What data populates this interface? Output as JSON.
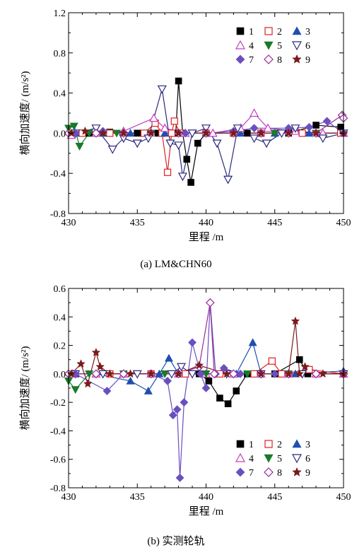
{
  "chart_data": [
    {
      "type": "line",
      "caption": "(a) LM&CHN60",
      "xlabel": "里程 /m",
      "ylabel": "横向加速度/ (m/s²)",
      "xlim": [
        430,
        450
      ],
      "ylim": [
        -0.8,
        1.2
      ],
      "xticks": [
        "430",
        "435",
        "440",
        "445",
        "450"
      ],
      "yticks": [
        "-0.8",
        "-0.4",
        "0.0",
        "0.4",
        "0.8",
        "1.2"
      ],
      "legend_position": "top-right",
      "series": [
        {
          "name": "1",
          "color": "#000000",
          "marker": "square-filled",
          "points": [
            [
              431.5,
              0.0
            ],
            [
              433.0,
              0.01
            ],
            [
              435.0,
              0.0
            ],
            [
              436.5,
              0.0
            ],
            [
              437.8,
              0.0
            ],
            [
              438.0,
              0.52
            ],
            [
              438.3,
              0.0
            ],
            [
              438.6,
              -0.26
            ],
            [
              438.9,
              -0.49
            ],
            [
              439.4,
              -0.1
            ],
            [
              440.0,
              0.0
            ],
            [
              443.0,
              0.0
            ],
            [
              446.0,
              0.0
            ],
            [
              448.0,
              0.08
            ],
            [
              449.8,
              0.06
            ]
          ]
        },
        {
          "name": "2",
          "color": "#e02020",
          "marker": "square-open",
          "points": [
            [
              431.0,
              0.0
            ],
            [
              433.0,
              0.0
            ],
            [
              435.5,
              0.0
            ],
            [
              436.3,
              0.1
            ],
            [
              436.8,
              0.0
            ],
            [
              437.2,
              -0.39
            ],
            [
              437.5,
              0.0
            ],
            [
              437.7,
              0.12
            ],
            [
              438.1,
              0.0
            ],
            [
              440.0,
              0.0
            ],
            [
              442.0,
              0.0
            ],
            [
              444.0,
              0.0
            ],
            [
              447.0,
              0.0
            ],
            [
              449.8,
              0.0
            ]
          ]
        },
        {
          "name": "3",
          "color": "#1f4fb0",
          "marker": "triangle-up-filled",
          "points": [
            [
              430.5,
              0.0
            ],
            [
              432.5,
              0.0
            ],
            [
              434.5,
              0.0
            ],
            [
              437.0,
              0.0
            ],
            [
              440.0,
              0.0
            ],
            [
              442.5,
              0.0
            ],
            [
              445.0,
              0.0
            ],
            [
              447.5,
              0.0
            ],
            [
              450.0,
              0.0
            ]
          ]
        },
        {
          "name": "4",
          "color": "#c040c0",
          "marker": "triangle-up-open",
          "points": [
            [
              430.2,
              -0.02
            ],
            [
              432.0,
              0.0
            ],
            [
              434.0,
              0.02
            ],
            [
              436.2,
              0.15
            ],
            [
              437.0,
              0.05
            ],
            [
              438.5,
              0.0
            ],
            [
              440.5,
              0.0
            ],
            [
              442.5,
              0.05
            ],
            [
              443.5,
              0.2
            ],
            [
              444.5,
              0.05
            ],
            [
              446.5,
              0.02
            ],
            [
              448.5,
              0.0
            ],
            [
              450.0,
              0.0
            ]
          ]
        },
        {
          "name": "5",
          "color": "#1a7a2a",
          "marker": "triangle-down-filled",
          "points": [
            [
              430.0,
              0.05
            ],
            [
              430.4,
              0.07
            ],
            [
              430.8,
              -0.13
            ],
            [
              431.5,
              0.0
            ],
            [
              433.5,
              0.0
            ],
            [
              436.0,
              0.0
            ],
            [
              439.0,
              0.0
            ],
            [
              442.0,
              0.0
            ],
            [
              445.0,
              0.0
            ],
            [
              448.0,
              0.0
            ],
            [
              450.0,
              0.0
            ]
          ]
        },
        {
          "name": "6",
          "color": "#2a2a80",
          "marker": "triangle-down-open",
          "points": [
            [
              430.5,
              0.0
            ],
            [
              432.0,
              0.05
            ],
            [
              433.2,
              -0.16
            ],
            [
              434.0,
              -0.05
            ],
            [
              435.0,
              -0.1
            ],
            [
              435.8,
              -0.05
            ],
            [
              436.8,
              0.44
            ],
            [
              437.4,
              -0.1
            ],
            [
              438.0,
              -0.12
            ],
            [
              438.3,
              -0.43
            ],
            [
              439.0,
              0.0
            ],
            [
              440.0,
              0.05
            ],
            [
              440.8,
              -0.1
            ],
            [
              441.6,
              -0.46
            ],
            [
              442.3,
              0.05
            ],
            [
              443.5,
              -0.05
            ],
            [
              444.4,
              -0.1
            ],
            [
              445.5,
              0.0
            ],
            [
              446.5,
              0.05
            ],
            [
              448.5,
              -0.05
            ],
            [
              450.0,
              0.0
            ]
          ]
        },
        {
          "name": "7",
          "color": "#6a4fc0",
          "marker": "diamond-filled",
          "points": [
            [
              430.5,
              0.0
            ],
            [
              432.5,
              0.02
            ],
            [
              434.0,
              0.0
            ],
            [
              436.0,
              0.0
            ],
            [
              438.5,
              0.0
            ],
            [
              440.0,
              0.0
            ],
            [
              442.0,
              0.02
            ],
            [
              443.5,
              0.05
            ],
            [
              446.0,
              0.05
            ],
            [
              447.5,
              0.06
            ],
            [
              448.8,
              0.12
            ],
            [
              450.0,
              0.0
            ]
          ]
        },
        {
          "name": "8",
          "color": "#9a2a9a",
          "marker": "diamond-open",
          "points": [
            [
              430.0,
              0.0
            ],
            [
              432.0,
              0.0
            ],
            [
              434.0,
              0.0
            ],
            [
              436.0,
              0.0
            ],
            [
              438.0,
              0.0
            ],
            [
              440.0,
              0.0
            ],
            [
              442.0,
              0.0
            ],
            [
              444.0,
              0.0
            ],
            [
              446.0,
              0.0
            ],
            [
              448.0,
              0.0
            ],
            [
              449.9,
              0.18
            ],
            [
              450.0,
              0.15
            ]
          ]
        },
        {
          "name": "9",
          "color": "#7a1a1a",
          "marker": "star",
          "points": [
            [
              430.2,
              0.0
            ],
            [
              431.2,
              0.02
            ],
            [
              432.5,
              0.0
            ],
            [
              434.0,
              0.0
            ],
            [
              436.0,
              0.0
            ],
            [
              438.0,
              0.0
            ],
            [
              440.0,
              0.0
            ],
            [
              442.0,
              0.0
            ],
            [
              444.0,
              0.0
            ],
            [
              446.0,
              0.0
            ],
            [
              448.0,
              0.0
            ],
            [
              450.0,
              0.0
            ]
          ]
        }
      ]
    },
    {
      "type": "line",
      "caption": "(b) 实测轮轨",
      "xlabel": "里程 /m",
      "ylabel": "横向加速度/ (m/s²)",
      "xlim": [
        430,
        450
      ],
      "ylim": [
        -0.8,
        0.6
      ],
      "xticks": [
        "430",
        "435",
        "440",
        "445",
        "450"
      ],
      "yticks": [
        "-0.8",
        "-0.6",
        "-0.4",
        "-0.2",
        "0.0",
        "0.2",
        "0.4",
        "0.6"
      ],
      "legend_position": "bottom-right",
      "series": [
        {
          "name": "1",
          "color": "#000000",
          "marker": "square-filled",
          "points": [
            [
              430.5,
              0.0
            ],
            [
              433.0,
              0.0
            ],
            [
              436.0,
              0.0
            ],
            [
              439.5,
              0.0
            ],
            [
              440.2,
              -0.05
            ],
            [
              441.0,
              -0.17
            ],
            [
              441.6,
              -0.21
            ],
            [
              442.2,
              -0.12
            ],
            [
              443.0,
              0.0
            ],
            [
              445.0,
              0.0
            ],
            [
              446.8,
              0.1
            ],
            [
              447.4,
              0.0
            ],
            [
              450.0,
              0.0
            ]
          ]
        },
        {
          "name": "2",
          "color": "#e02020",
          "marker": "square-open",
          "points": [
            [
              430.5,
              0.0
            ],
            [
              433.0,
              0.0
            ],
            [
              436.0,
              0.0
            ],
            [
              438.5,
              0.0
            ],
            [
              441.0,
              0.0
            ],
            [
              443.5,
              0.0
            ],
            [
              444.8,
              0.09
            ],
            [
              445.5,
              0.0
            ],
            [
              447.5,
              0.03
            ],
            [
              450.0,
              0.0
            ]
          ]
        },
        {
          "name": "3",
          "color": "#1f4fb0",
          "marker": "triangle-up-filled",
          "points": [
            [
              430.5,
              0.0
            ],
            [
              432.0,
              0.0
            ],
            [
              434.5,
              -0.05
            ],
            [
              435.8,
              -0.12
            ],
            [
              436.6,
              0.0
            ],
            [
              437.3,
              0.11
            ],
            [
              438.0,
              0.0
            ],
            [
              440.0,
              0.0
            ],
            [
              442.2,
              0.0
            ],
            [
              443.4,
              0.22
            ],
            [
              444.0,
              0.0
            ],
            [
              446.5,
              0.0
            ],
            [
              450.0,
              0.02
            ]
          ]
        },
        {
          "name": "4",
          "color": "#c040c0",
          "marker": "triangle-up-open",
          "points": [
            [
              430.3,
              0.0
            ],
            [
              432.0,
              0.0
            ],
            [
              434.0,
              0.0
            ],
            [
              436.0,
              0.0
            ],
            [
              438.0,
              0.0
            ],
            [
              440.0,
              0.0
            ],
            [
              442.0,
              0.0
            ],
            [
              444.0,
              0.0
            ],
            [
              446.0,
              0.0
            ],
            [
              448.0,
              0.0
            ],
            [
              450.0,
              0.0
            ]
          ]
        },
        {
          "name": "5",
          "color": "#1a7a2a",
          "marker": "triangle-down-filled",
          "points": [
            [
              430.0,
              -0.05
            ],
            [
              430.5,
              -0.11
            ],
            [
              431.5,
              0.0
            ],
            [
              434.0,
              0.0
            ],
            [
              437.0,
              0.0
            ],
            [
              440.0,
              0.0
            ],
            [
              443.0,
              0.0
            ],
            [
              446.0,
              0.0
            ],
            [
              450.0,
              0.0
            ]
          ]
        },
        {
          "name": "6",
          "color": "#2a2a80",
          "marker": "triangle-down-open",
          "points": [
            [
              430.5,
              0.0
            ],
            [
              432.5,
              0.0
            ],
            [
              435.0,
              0.0
            ],
            [
              437.5,
              0.0
            ],
            [
              438.2,
              0.05
            ],
            [
              439.0,
              0.0
            ],
            [
              441.5,
              0.0
            ],
            [
              444.0,
              0.0
            ],
            [
              447.0,
              0.0
            ],
            [
              450.0,
              0.0
            ]
          ]
        },
        {
          "name": "7",
          "color": "#6a4fc0",
          "marker": "diamond-filled",
          "points": [
            [
              430.5,
              0.0
            ],
            [
              432.8,
              -0.12
            ],
            [
              434.0,
              0.0
            ],
            [
              436.0,
              0.0
            ],
            [
              437.2,
              -0.05
            ],
            [
              437.6,
              -0.29
            ],
            [
              437.9,
              -0.25
            ],
            [
              438.1,
              -0.73
            ],
            [
              438.4,
              -0.2
            ],
            [
              439.0,
              0.22
            ],
            [
              439.6,
              0.0
            ],
            [
              440.0,
              -0.1
            ],
            [
              440.3,
              0.5
            ],
            [
              440.7,
              0.0
            ],
            [
              441.3,
              0.04
            ],
            [
              442.5,
              0.0
            ],
            [
              445.0,
              0.0
            ],
            [
              448.0,
              0.0
            ],
            [
              450.0,
              0.0
            ]
          ]
        },
        {
          "name": "8",
          "color": "#9a2a9a",
          "marker": "diamond-open",
          "points": [
            [
              430.0,
              0.0
            ],
            [
              432.0,
              0.0
            ],
            [
              434.0,
              0.0
            ],
            [
              436.0,
              0.0
            ],
            [
              438.0,
              0.0
            ],
            [
              439.5,
              0.05
            ],
            [
              440.3,
              0.5
            ],
            [
              440.6,
              0.0
            ],
            [
              442.0,
              0.0
            ],
            [
              444.0,
              0.0
            ],
            [
              446.0,
              0.0
            ],
            [
              448.0,
              0.0
            ],
            [
              450.0,
              0.0
            ]
          ]
        },
        {
          "name": "9",
          "color": "#7a1a1a",
          "marker": "star",
          "points": [
            [
              430.2,
              0.0
            ],
            [
              430.9,
              0.07
            ],
            [
              431.4,
              -0.07
            ],
            [
              432.0,
              0.15
            ],
            [
              432.3,
              0.05
            ],
            [
              433.0,
              0.0
            ],
            [
              434.5,
              0.0
            ],
            [
              436.0,
              0.0
            ],
            [
              438.0,
              0.0
            ],
            [
              439.5,
              0.06
            ],
            [
              441.5,
              0.0
            ],
            [
              444.0,
              0.0
            ],
            [
              446.0,
              0.0
            ],
            [
              446.5,
              0.37
            ],
            [
              446.8,
              0.0
            ],
            [
              447.2,
              0.05
            ],
            [
              448.5,
              0.0
            ],
            [
              450.0,
              0.0
            ]
          ]
        }
      ]
    }
  ]
}
